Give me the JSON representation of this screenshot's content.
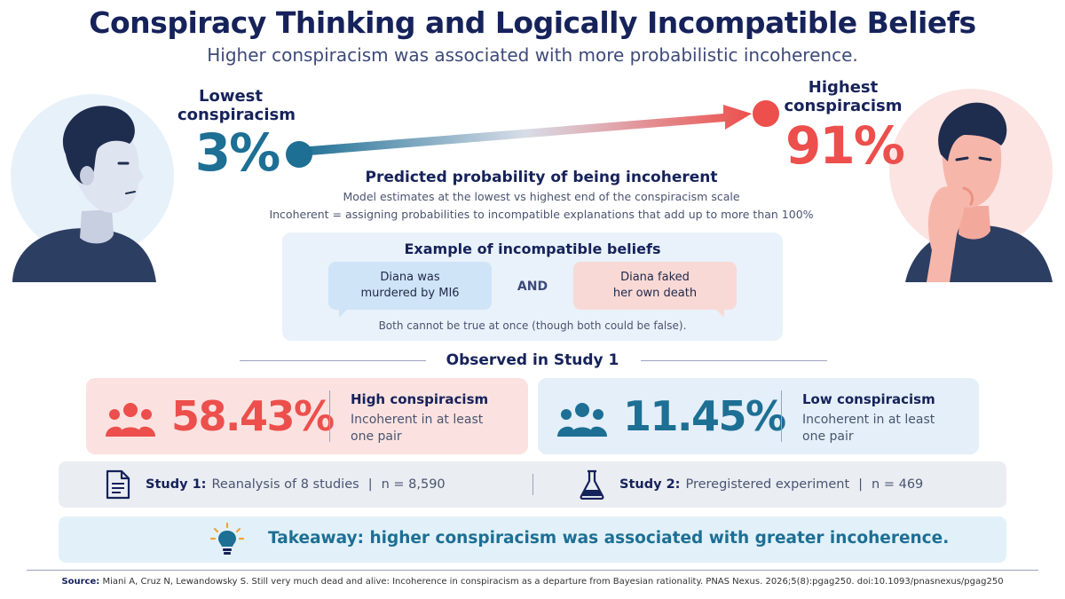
{
  "header": {
    "title": "Conspiracy Thinking and Logically Incompatible Beliefs",
    "subtitle": "Higher conspiracism was associated with more probabilistic incoherence."
  },
  "prediction": {
    "low_label_line1": "Lowest",
    "low_label_line2": "conspiracism",
    "low_value": "3%",
    "high_label_line1": "Highest",
    "high_label_line2": "conspiracism",
    "high_value": "91%",
    "title": "Predicted probability of being incoherent",
    "subtitle": "Model estimates at the lowest vs highest end of the conspiracism scale",
    "definition": "Incoherent = assigning probabilities to incompatible explanations that add up to more than 100%"
  },
  "example": {
    "title": "Example of incompatible beliefs",
    "belief_a_line1": "Diana was",
    "belief_a_line2": "murdered by MI6",
    "connector": "AND",
    "belief_b_line1": "Diana faked",
    "belief_b_line2": "her own death",
    "note": "Both cannot be true at once (though both could be false)."
  },
  "observed": {
    "title": "Observed in Study 1",
    "high": {
      "value": "58.43%",
      "label": "High conspiracism",
      "desc_line1": "Incoherent in at least",
      "desc_line2": "one pair",
      "icon": "people-icon"
    },
    "low": {
      "value": "11.45%",
      "label": "Low conspiracism",
      "desc_line1": "Incoherent in at least",
      "desc_line2": "one pair",
      "icon": "people-icon"
    }
  },
  "studies": {
    "study1_label": "Study 1:",
    "study1_desc": "Reanalysis of 8 studies",
    "study1_sep": "|",
    "study1_n": "n = 8,590",
    "study2_label": "Study 2:",
    "study2_desc": "Preregistered experiment",
    "study2_sep": "|",
    "study2_n": "n = 469"
  },
  "takeaway": {
    "text": "Takeaway: higher conspiracism was associated with greater incoherence.",
    "icon": "lightbulb-icon"
  },
  "source": {
    "label": "Source:",
    "text": "Miani A, Cruz N, Lewandowsky S. Still very much dead and alive: Incoherence in conspiracism as a departure from Bayesian rationality. PNAS Nexus. 2026;5(8):pgag250. doi:10.1093/pnasnexus/pgag250"
  },
  "colors": {
    "navy": "#16225a",
    "low_blue": "#1d6f94",
    "high_red": "#ec4f4c",
    "example_bg": "#e9f2fa",
    "high_bg": "#fbe2e0",
    "low_bg": "#e4eff9",
    "studies_bg": "#eaedf2",
    "takeaway_bg": "#e2f1f9"
  }
}
